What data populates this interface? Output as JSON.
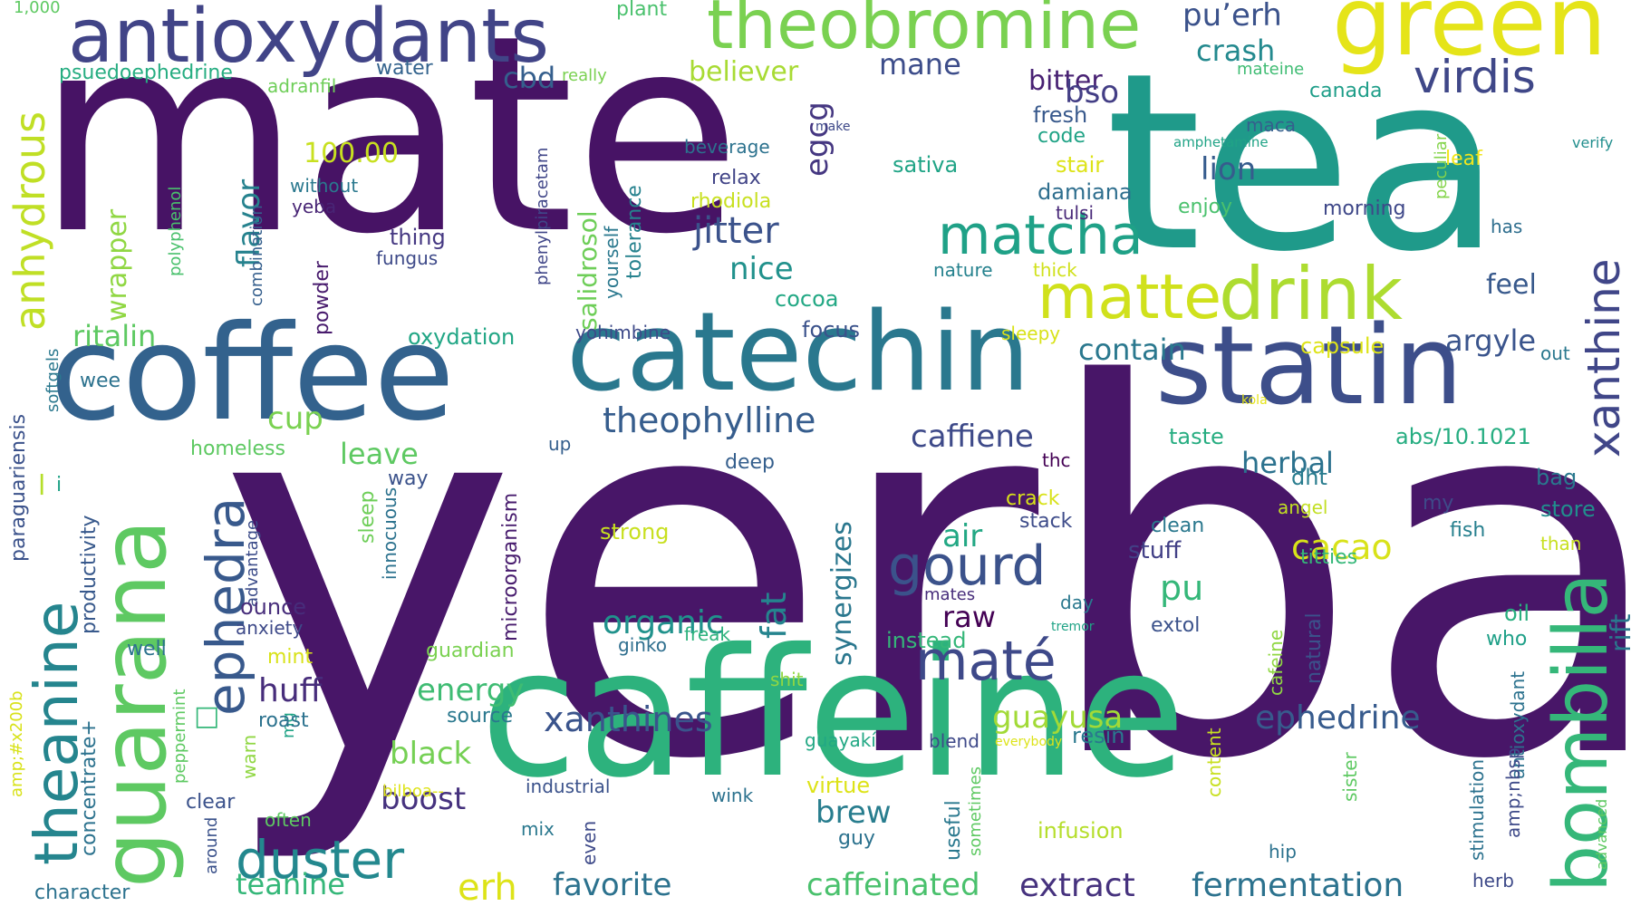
{
  "words": [
    {
      "text": "yerba",
      "color": "#481668"
    },
    {
      "text": "mate",
      "color": "#471365"
    },
    {
      "text": "tea",
      "color": "#1f9a8a"
    },
    {
      "text": "caffeine",
      "color": "#2db27d"
    },
    {
      "text": "coffee",
      "color": "#33628d"
    },
    {
      "text": "catechin",
      "color": "#2a788e"
    },
    {
      "text": "statin",
      "color": "#3d4e8a"
    },
    {
      "text": "green",
      "color": "#e5e419"
    },
    {
      "text": "guarana",
      "color": "#5ec962"
    },
    {
      "text": "antioxydants",
      "color": "#414487"
    },
    {
      "text": "theobromine",
      "color": "#7ad151"
    },
    {
      "text": "drink",
      "color": "#addc30"
    },
    {
      "text": "matte",
      "color": "#d0e11c"
    },
    {
      "text": "bombilla",
      "color": "#35b779"
    },
    {
      "text": "theanine",
      "color": "#25858e"
    },
    {
      "text": "matcha",
      "color": "#1fa187"
    },
    {
      "text": "gourd",
      "color": "#3b528b"
    },
    {
      "text": "maté",
      "color": "#3e4989"
    },
    {
      "text": "ephedra",
      "color": "#38598c"
    },
    {
      "text": "duster",
      "color": "#23888e"
    },
    {
      "text": "virdis",
      "color": "#3f4788"
    },
    {
      "text": "xanthine",
      "color": "#404688"
    },
    {
      "text": "anhydrous",
      "color": "#c0df25"
    },
    {
      "text": "theophylline",
      "color": "#365d8d"
    },
    {
      "text": "xanthines",
      "color": "#3a548c"
    },
    {
      "text": "jitter",
      "color": "#3b528b"
    },
    {
      "text": "caffiene",
      "color": "#3e4a89"
    },
    {
      "text": "ephedrine",
      "color": "#375b8d"
    },
    {
      "text": "caffeinated",
      "color": "#4ac16d"
    },
    {
      "text": "fermentation",
      "color": "#2c728e"
    },
    {
      "text": "extract",
      "color": "#46327e"
    },
    {
      "text": "favorite",
      "color": "#2c728e"
    },
    {
      "text": "teanine",
      "color": "#35b779"
    },
    {
      "text": "erh",
      "color": "#dde318"
    },
    {
      "text": "boost",
      "color": "#46327e"
    },
    {
      "text": "black",
      "color": "#75d054"
    },
    {
      "text": "guayusa",
      "color": "#a2da37"
    },
    {
      "text": "cacao",
      "color": "#d8e219"
    },
    {
      "text": "organic",
      "color": "#20928c"
    },
    {
      "text": "herbal",
      "color": "#2c728e"
    },
    {
      "text": "contain",
      "color": "#2a788e"
    },
    {
      "text": "argyle",
      "color": "#3a548c"
    },
    {
      "text": "egcg",
      "color": "#453781"
    },
    {
      "text": "flavor",
      "color": "#26828e"
    },
    {
      "text": "huff",
      "color": "#472d7b"
    },
    {
      "text": "energy",
      "color": "#3fbc73"
    },
    {
      "text": "brew",
      "color": "#287d8e"
    },
    {
      "text": "synergizes",
      "color": "#2a778e"
    },
    {
      "text": "salidrosol",
      "color": "#6ece58"
    },
    {
      "text": "pu’erh",
      "color": "#3b528b"
    },
    {
      "text": "crash",
      "color": "#23898e"
    },
    {
      "text": "cbd",
      "color": "#355f8d"
    },
    {
      "text": "believer",
      "color": "#a8db34"
    },
    {
      "text": "mane",
      "color": "#3d4d8a"
    },
    {
      "text": "bitter",
      "color": "#482173"
    },
    {
      "text": "bso",
      "color": "#433e85"
    },
    {
      "text": "lion",
      "color": "#365c8d"
    },
    {
      "text": "nice",
      "color": "#21918c"
    },
    {
      "text": "ritalin",
      "color": "#5ec962"
    },
    {
      "text": "cup",
      "color": "#7ad151"
    },
    {
      "text": "leave",
      "color": "#5ec962"
    },
    {
      "text": "wrapper",
      "color": "#90d743"
    },
    {
      "text": "100.00",
      "color": "#c8e020"
    },
    {
      "text": "psuedoephedrine",
      "color": "#26ad81"
    },
    {
      "text": "water",
      "color": "#33638d"
    },
    {
      "text": "fat",
      "color": "#25848e"
    },
    {
      "text": "air",
      "color": "#22a884"
    },
    {
      "text": "raw",
      "color": "#440154"
    },
    {
      "text": "pu",
      "color": "#35b779"
    },
    {
      "text": "feel",
      "color": "#38598c"
    },
    {
      "text": "rift",
      "color": "#2a788e"
    },
    {
      "text": "stuff",
      "color": "#424086"
    },
    {
      "text": "extol",
      "color": "#3b528b"
    },
    {
      "text": "oil",
      "color": "#29af7f"
    },
    {
      "text": "who",
      "color": "#1fa088"
    },
    {
      "text": "store",
      "color": "#218e8d"
    },
    {
      "text": "bag",
      "color": "#2a788e"
    },
    {
      "text": "my",
      "color": "#3e4a89"
    },
    {
      "text": "fish",
      "color": "#27808e"
    },
    {
      "text": "than",
      "color": "#c8e020"
    },
    {
      "text": "titties",
      "color": "#35b779"
    },
    {
      "text": "clean",
      "color": "#2a788e"
    },
    {
      "text": "stack",
      "color": "#3e4c8a"
    },
    {
      "text": "crack",
      "color": "#d8e219"
    },
    {
      "text": "taste",
      "color": "#27ad81"
    },
    {
      "text": "abs/10.1021",
      "color": "#26ad81"
    },
    {
      "text": "dht",
      "color": "#287c8e"
    },
    {
      "text": "angel",
      "color": "#c2df23"
    },
    {
      "text": "capsule",
      "color": "#dde318"
    },
    {
      "text": "out",
      "color": "#2a788e"
    },
    {
      "text": "kola",
      "color": "#e5e419"
    },
    {
      "text": "plant",
      "color": "#4ac16d"
    },
    {
      "text": "1,000",
      "color": "#5ec962"
    },
    {
      "text": "adranfil",
      "color": "#6ece58"
    },
    {
      "text": "really",
      "color": "#7ad151"
    },
    {
      "text": "mateine",
      "color": "#3fbc73"
    },
    {
      "text": "canada",
      "color": "#1f9e89"
    },
    {
      "text": "fresh",
      "color": "#38598c"
    },
    {
      "text": "code",
      "color": "#20a386"
    },
    {
      "text": "maca",
      "color": "#355f8d"
    },
    {
      "text": "make",
      "color": "#3e4989"
    },
    {
      "text": "beverage",
      "color": "#2c728e"
    },
    {
      "text": "relax",
      "color": "#414487"
    },
    {
      "text": "rhodiola",
      "color": "#c8e020"
    },
    {
      "text": "sativa",
      "color": "#20a486"
    },
    {
      "text": "stair",
      "color": "#dde318"
    },
    {
      "text": "damiana",
      "color": "#2e6e8e"
    },
    {
      "text": "tulsi",
      "color": "#482878"
    },
    {
      "text": "enjoy",
      "color": "#4ac16d"
    },
    {
      "text": "morning",
      "color": "#3f4889"
    },
    {
      "text": "leaf",
      "color": "#f1e51d"
    },
    {
      "text": "has",
      "color": "#2e6e8e"
    },
    {
      "text": "amphetamine",
      "color": "#20a386"
    },
    {
      "text": "verify",
      "color": "#218e8d"
    },
    {
      "text": "peculiar",
      "color": "#84d44b"
    },
    {
      "text": "without",
      "color": "#2a788e"
    },
    {
      "text": "yeba",
      "color": "#482575"
    },
    {
      "text": "thing",
      "color": "#453882"
    },
    {
      "text": "fungus",
      "color": "#3e4a89"
    },
    {
      "text": "polyphenol",
      "color": "#4ac16d"
    },
    {
      "text": "combination",
      "color": "#355f8d"
    },
    {
      "text": "powder",
      "color": "#481b6d"
    },
    {
      "text": "phenylpiracetam",
      "color": "#404688"
    },
    {
      "text": "yourself",
      "color": "#2a788e"
    },
    {
      "text": "tolerance",
      "color": "#26828e"
    },
    {
      "text": "nature",
      "color": "#26828e"
    },
    {
      "text": "thick",
      "color": "#d0e11c"
    },
    {
      "text": "cocoa",
      "color": "#22a884"
    },
    {
      "text": "focus",
      "color": "#3b528b"
    },
    {
      "text": "sleepy",
      "color": "#d8e219"
    },
    {
      "text": "oxydation",
      "color": "#21a685"
    },
    {
      "text": "yohimbine",
      "color": "#3e4a89"
    },
    {
      "text": "wee",
      "color": "#2c728e"
    },
    {
      "text": "softgels",
      "color": "#2a788e"
    },
    {
      "text": "paraguariensis",
      "color": "#3b528b"
    },
    {
      "text": "homeless",
      "color": "#5ec962"
    },
    {
      "text": "up",
      "color": "#355f8d"
    },
    {
      "text": "deep",
      "color": "#355f8d"
    },
    {
      "text": "thc",
      "color": "#440154"
    },
    {
      "text": "way",
      "color": "#3b528b"
    },
    {
      "text": "l",
      "color": "#b5de2b"
    },
    {
      "text": "i",
      "color": "#20a386"
    },
    {
      "text": "productivity",
      "color": "#38598c"
    },
    {
      "text": "advantage",
      "color": "#3d4d8a"
    },
    {
      "text": "sleep",
      "color": "#6ece58"
    },
    {
      "text": "innocuous",
      "color": "#2c728e"
    },
    {
      "text": "microorganism",
      "color": "#481c6e"
    },
    {
      "text": "strong",
      "color": "#c8e020"
    },
    {
      "text": "ounce",
      "color": "#472d7b"
    },
    {
      "text": "anxiety",
      "color": "#3e4a89"
    },
    {
      "text": "well",
      "color": "#2c728e"
    },
    {
      "text": "mint",
      "color": "#d8e219"
    },
    {
      "text": "guardian",
      "color": "#7ad151"
    },
    {
      "text": "freak",
      "color": "#2db27d"
    },
    {
      "text": "ginko",
      "color": "#2e6e8e"
    },
    {
      "text": "instead",
      "color": "#35b779"
    },
    {
      "text": "mates",
      "color": "#472d7b"
    },
    {
      "text": "day",
      "color": "#2a788e"
    },
    {
      "text": "tremor",
      "color": "#20a386"
    },
    {
      "text": "natural",
      "color": "#3b528b"
    },
    {
      "text": "cafeine",
      "color": "#90d743"
    },
    {
      "text": "antioxydant",
      "color": "#2c728e"
    },
    {
      "text": "concentrate+",
      "color": "#2c728e"
    },
    {
      "text": "peppermint",
      "color": "#5ec962"
    },
    {
      "text": "amp;#x200b",
      "color": "#d8e219"
    },
    {
      "text": "warn",
      "color": "#90d743"
    },
    {
      "text": "mg",
      "color": "#20a386"
    },
    {
      "text": "roast",
      "color": "#2c728e"
    },
    {
      "text": "source",
      "color": "#2a788e"
    },
    {
      "text": "shit",
      "color": "#90d743"
    },
    {
      "text": "□",
      "color": "#35b779"
    },
    {
      "text": "clear",
      "color": "#3b528b"
    },
    {
      "text": "often",
      "color": "#5ec962"
    },
    {
      "text": "bilboa--",
      "color": "#dde318"
    },
    {
      "text": "mix",
      "color": "#2a788e"
    },
    {
      "text": "even",
      "color": "#3e4a89"
    },
    {
      "text": "industrial",
      "color": "#3b528b"
    },
    {
      "text": "wink",
      "color": "#2c728e"
    },
    {
      "text": "guayakí",
      "color": "#22a884"
    },
    {
      "text": "virtue",
      "color": "#dde318"
    },
    {
      "text": "guy",
      "color": "#2c728e"
    },
    {
      "text": "blend",
      "color": "#3e4989"
    },
    {
      "text": "everybody",
      "color": "#dde318"
    },
    {
      "text": "useful",
      "color": "#2a788e"
    },
    {
      "text": "sometimes",
      "color": "#5ec962"
    },
    {
      "text": "resin",
      "color": "#2a788e"
    },
    {
      "text": "infusion",
      "color": "#b5de2b"
    },
    {
      "text": "content",
      "color": "#c8e020"
    },
    {
      "text": "sister",
      "color": "#5ec962"
    },
    {
      "text": "hip",
      "color": "#2c728e"
    },
    {
      "text": "amp;nbsp",
      "color": "#3e4a89"
    },
    {
      "text": "stimulation",
      "color": "#2c728e"
    },
    {
      "text": "advanced",
      "color": "#5ec962"
    },
    {
      "text": "herb",
      "color": "#3e4a89"
    },
    {
      "text": "character",
      "color": "#2c728e"
    },
    {
      "text": "around",
      "color": "#3b528b"
    }
  ]
}
